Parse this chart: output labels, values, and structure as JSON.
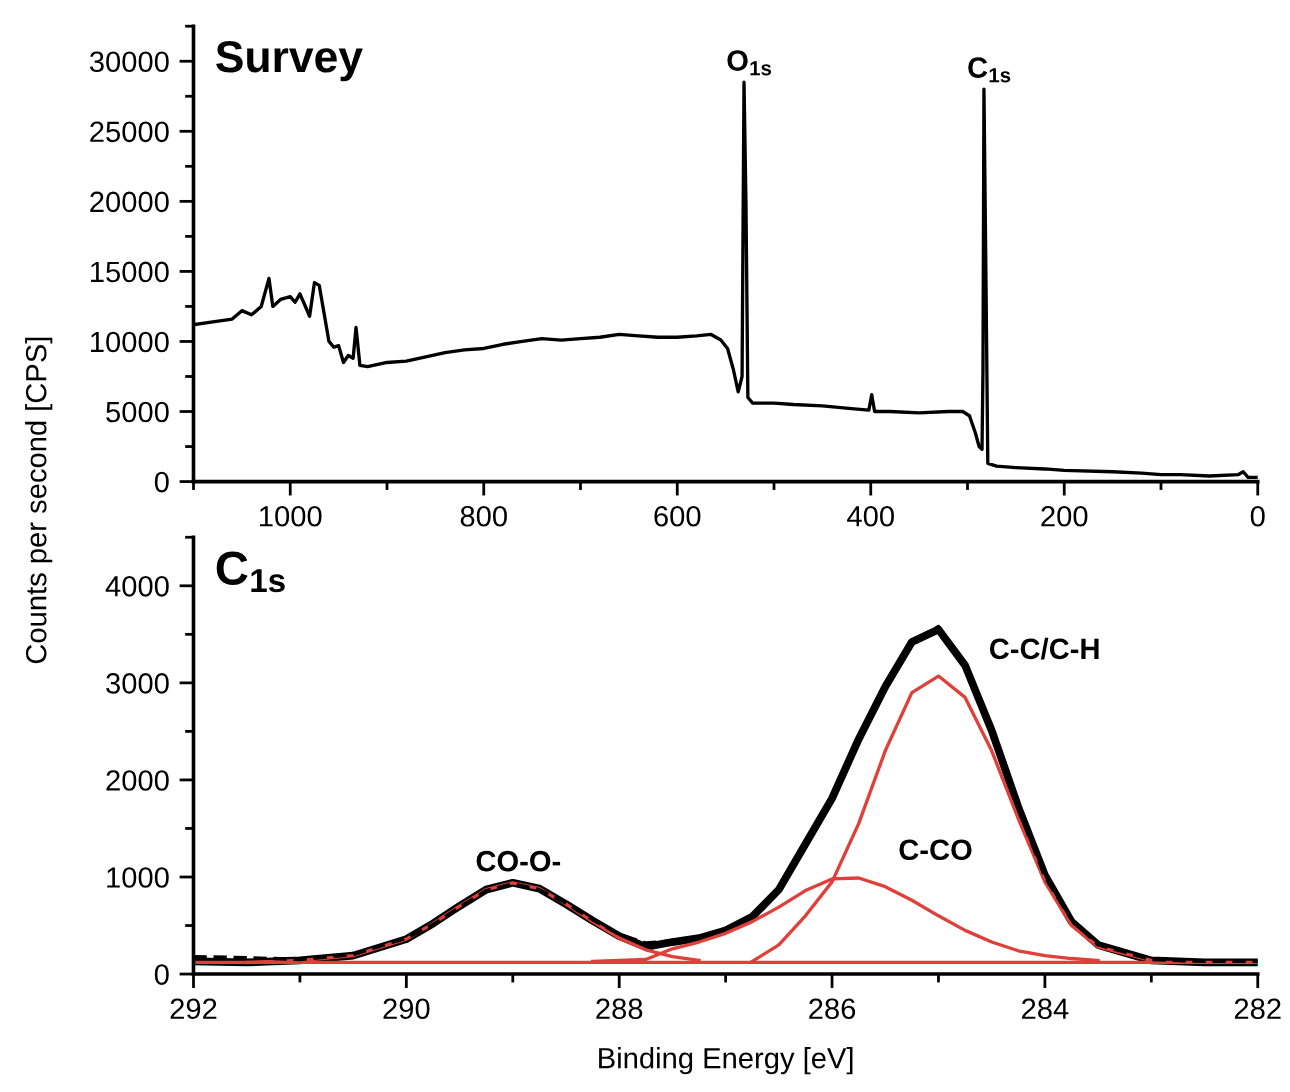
{
  "chart_data": [
    {
      "type": "line",
      "annotations": [
        "Survey",
        {
          "text": "O$_{1s}$",
          "x": 531,
          "y": 28500
        },
        {
          "text": "C$_{1s}$",
          "x": 283,
          "y": 28000
        }
      ],
      "ylabel": "Counts per second [CPS]",
      "xlim": [
        1100,
        0
      ],
      "xticks": [
        1000,
        800,
        600,
        400,
        200,
        0
      ],
      "ylim": [
        0,
        32500
      ],
      "yticks": [
        0,
        5000,
        10000,
        15000,
        20000,
        25000,
        30000
      ],
      "grid": false,
      "legend": false,
      "series": [
        {
          "color": "#000000",
          "line_style": "solid",
          "x": [
            1100,
            1080,
            1060,
            1050,
            1040,
            1030,
            1022,
            1018,
            1010,
            1000,
            995,
            990,
            985,
            980,
            975,
            970,
            965,
            960,
            955,
            950,
            945,
            940,
            935,
            932,
            928,
            920,
            900,
            880,
            860,
            840,
            820,
            800,
            780,
            760,
            740,
            720,
            700,
            680,
            660,
            640,
            620,
            600,
            580,
            565,
            555,
            548,
            542,
            537,
            533,
            531,
            529,
            527,
            522,
            500,
            480,
            450,
            420,
            402,
            399,
            396,
            380,
            350,
            320,
            305,
            298,
            292,
            288,
            285,
            284,
            283,
            281,
            279,
            270,
            250,
            220,
            200,
            150,
            120,
            100,
            80,
            50,
            20,
            15,
            10,
            0
          ],
          "values": [
            11200,
            11400,
            11600,
            12200,
            11900,
            12500,
            14500,
            12500,
            13000,
            13200,
            12800,
            13400,
            12600,
            11800,
            14200,
            14000,
            12000,
            10000,
            9600,
            9700,
            8500,
            9000,
            8800,
            11000,
            8300,
            8200,
            8500,
            8600,
            8900,
            9200,
            9400,
            9500,
            9800,
            10000,
            10200,
            10100,
            10200,
            10300,
            10500,
            10400,
            10300,
            10300,
            10400,
            10500,
            10100,
            9500,
            8000,
            6400,
            7500,
            28500,
            20000,
            6000,
            5600,
            5600,
            5500,
            5400,
            5200,
            5100,
            6200,
            5000,
            5000,
            4900,
            5000,
            5000,
            4700,
            3500,
            2500,
            2300,
            8000,
            28000,
            15000,
            1300,
            1100,
            1000,
            900,
            800,
            700,
            600,
            500,
            500,
            400,
            500,
            700,
            300,
            300
          ]
        }
      ]
    },
    {
      "type": "line",
      "annotations": [
        "C$_{1s}$",
        {
          "text": "CO-O-",
          "x": 289,
          "y": 940
        },
        {
          "text": "C-CO",
          "x": 285.9,
          "y": 1000
        },
        {
          "text": "C-C/C-H",
          "x": 285.05,
          "y": 3070
        }
      ],
      "xlabel": "Binding Energy [eV]",
      "xlim": [
        292,
        282
      ],
      "xticks": [
        292,
        290,
        288,
        286,
        284,
        282
      ],
      "ylim": [
        0,
        4500
      ],
      "yticks": [
        0,
        1000,
        2000,
        3000,
        4000
      ],
      "grid": false,
      "legend": false,
      "x": [
        292,
        291.5,
        291,
        290.5,
        290,
        289.75,
        289.5,
        289.25,
        289,
        288.75,
        288.5,
        288.25,
        288,
        287.75,
        287.5,
        287.25,
        287,
        286.75,
        286.5,
        286.25,
        286,
        285.75,
        285.5,
        285.25,
        285,
        284.75,
        284.5,
        284.25,
        284,
        283.75,
        283.5,
        283,
        282.5,
        282
      ],
      "series": [
        {
          "color": "#000000",
          "line_style": "dashed",
          "values": [
            180,
            170,
            150,
            200,
            370,
            510,
            690,
            860,
            930,
            870,
            730,
            560,
            410,
            320,
            340,
            380,
            470,
            610,
            880,
            1330,
            1800,
            2400,
            2950,
            3430,
            3580,
            3200,
            2480,
            1700,
            1000,
            560,
            300,
            150,
            130,
            130
          ]
        },
        {
          "color": "#000000",
          "line_style": "solid",
          "values": [
            130,
            120,
            140,
            190,
            360,
            520,
            700,
            870,
            940,
            880,
            720,
            550,
            390,
            280,
            330,
            370,
            450,
            590,
            870,
            1340,
            1810,
            2420,
            2960,
            3420,
            3550,
            3180,
            2510,
            1720,
            1020,
            540,
            300,
            140,
            120,
            120
          ]
        },
        {
          "color": "#e0403a",
          "line_style": "solid",
          "values": [
            120,
            120,
            120,
            120,
            120,
            120,
            120,
            120,
            120,
            120,
            120,
            120,
            120,
            120,
            120,
            120,
            120,
            120,
            120,
            120,
            120,
            120,
            120,
            120,
            120,
            120,
            120,
            120,
            120,
            120,
            120,
            120,
            120,
            120
          ]
        },
        {
          "color": "#e0403a",
          "line_style": "solid",
          "values": [
            null,
            120,
            140,
            190,
            360,
            520,
            700,
            870,
            940,
            880,
            720,
            540,
            370,
            250,
            180,
            140,
            null,
            null,
            null,
            null,
            null,
            null,
            null,
            null,
            null,
            null,
            null,
            null,
            null,
            null,
            null,
            null,
            null,
            null
          ]
        },
        {
          "color": "#e0403a",
          "line_style": "solid",
          "values": [
            null,
            null,
            null,
            null,
            null,
            null,
            null,
            null,
            null,
            null,
            null,
            130,
            140,
            150,
            260,
            330,
            420,
            540,
            690,
            860,
            980,
            990,
            900,
            760,
            600,
            450,
            330,
            240,
            190,
            160,
            140,
            null,
            null,
            null
          ]
        },
        {
          "color": "#e0403a",
          "line_style": "solid",
          "values": [
            null,
            null,
            null,
            null,
            null,
            null,
            null,
            null,
            null,
            null,
            null,
            null,
            null,
            null,
            null,
            null,
            null,
            130,
            300,
            600,
            950,
            1550,
            2300,
            2900,
            3070,
            2850,
            2300,
            1600,
            950,
            500,
            280,
            140,
            null,
            null
          ]
        }
      ]
    }
  ]
}
